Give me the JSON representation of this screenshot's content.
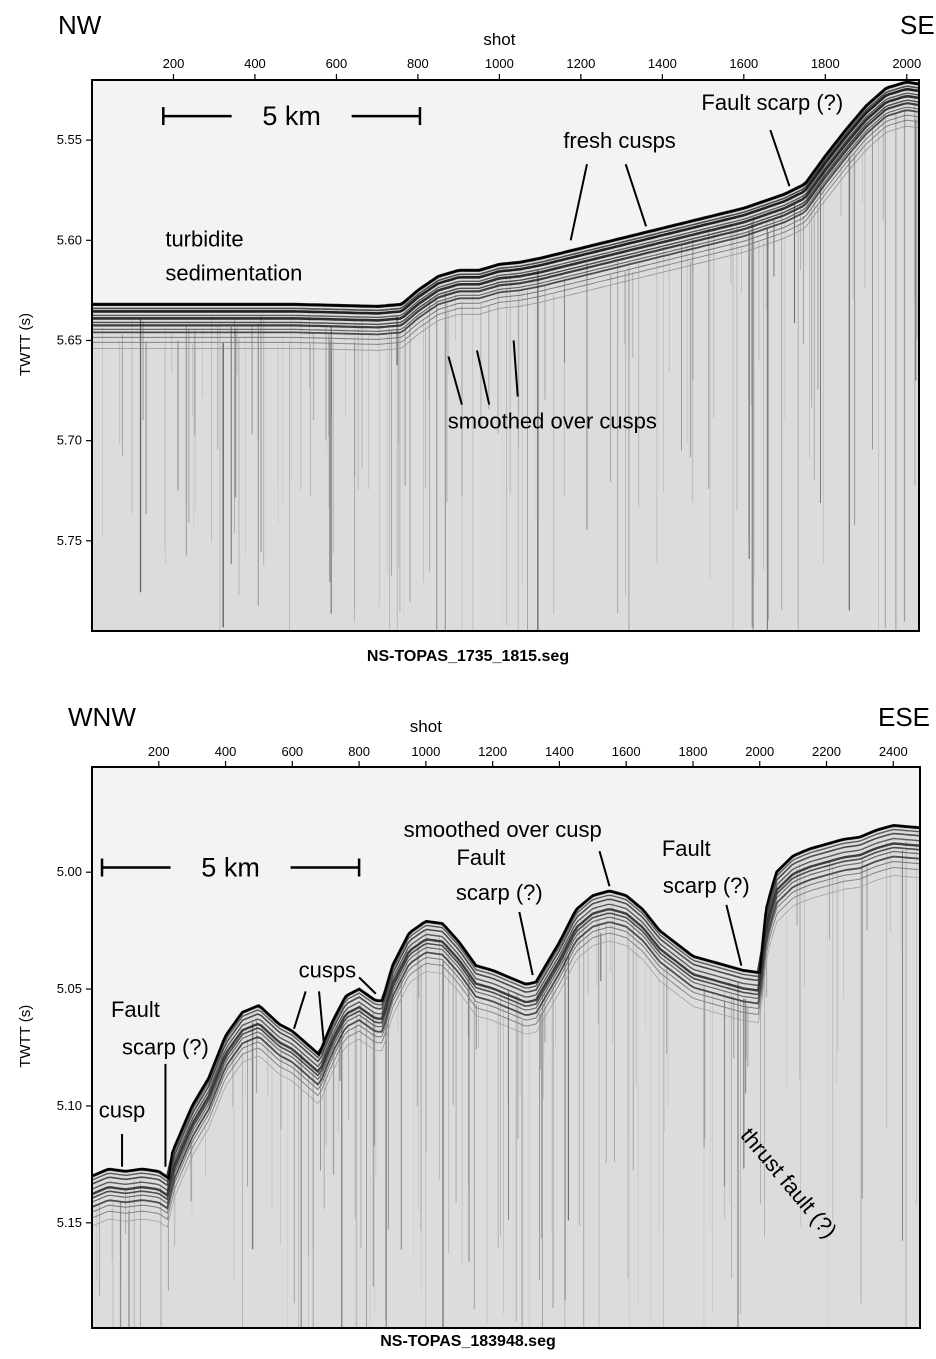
{
  "chart_data": [
    {
      "type": "line",
      "filename": "NS-TOPAS_1735_1815.seg",
      "dir_left": "NW",
      "dir_right": "SE",
      "xlabel": "shot",
      "ylabel": "TWTT (s)",
      "xlim": [
        0,
        2030
      ],
      "ylim": [
        5.52,
        5.795
      ],
      "xticks": [
        200,
        400,
        600,
        800,
        1000,
        1200,
        1400,
        1600,
        1800,
        2000
      ],
      "xtick_labels": [
        "200",
        "400",
        "600",
        "800",
        "1000",
        "1200",
        "1400",
        "1600",
        "1800",
        "2000"
      ],
      "yticks": [
        5.55,
        5.6,
        5.65,
        5.7,
        5.75
      ],
      "ytick_labels": [
        "5.55",
        "5.60",
        "5.65",
        "5.70",
        "5.75"
      ],
      "scale_bar": {
        "label": "5 km",
        "from": 175,
        "to": 805,
        "y": 5.538
      },
      "series": [
        {
          "x": [
            0,
            150,
            300,
            500,
            700,
            760,
            800,
            850,
            900,
            950,
            1000,
            1050,
            1100,
            1200,
            1300,
            1400,
            1500,
            1600,
            1700,
            1750,
            1800,
            1850,
            1900,
            1950,
            2000,
            2030
          ],
          "y": [
            5.632,
            5.632,
            5.632,
            5.632,
            5.633,
            5.632,
            5.625,
            5.618,
            5.615,
            5.615,
            5.612,
            5.611,
            5.609,
            5.604,
            5.599,
            5.594,
            5.589,
            5.584,
            5.577,
            5.572,
            5.558,
            5.545,
            5.533,
            5.524,
            5.521,
            5.522
          ]
        }
      ],
      "annotations": [
        {
          "text": "turbidite",
          "x": 180,
          "y": 5.603,
          "align": "start"
        },
        {
          "text": "sedimentation",
          "x": 180,
          "y": 5.62,
          "align": "start"
        },
        {
          "text": "fresh cusps",
          "x": 1295,
          "y": 5.554,
          "align": "middle"
        },
        {
          "text": "Fault scarp (?)",
          "x": 1670,
          "y": 5.535,
          "align": "middle"
        },
        {
          "text": "smoothed over cusps",
          "x": 1130,
          "y": 5.694,
          "align": "middle"
        }
      ],
      "pointers": [
        {
          "from": [
            1215,
            5.562
          ],
          "to": [
            1175,
            5.6
          ]
        },
        {
          "from": [
            1310,
            5.562
          ],
          "to": [
            1360,
            5.593
          ]
        },
        {
          "from": [
            1665,
            5.545
          ],
          "to": [
            1712,
            5.573
          ]
        },
        {
          "from": [
            908,
            5.682
          ],
          "to": [
            875,
            5.658
          ]
        },
        {
          "from": [
            975,
            5.682
          ],
          "to": [
            945,
            5.655
          ]
        },
        {
          "from": [
            1045,
            5.678
          ],
          "to": [
            1035,
            5.65
          ]
        }
      ]
    },
    {
      "type": "line",
      "filename": "NS-TOPAS_183948.seg",
      "dir_left": "WNW",
      "dir_right": "ESE",
      "xlabel": "shot",
      "ylabel": "TWTT (s)",
      "xlim": [
        0,
        2480
      ],
      "ylim": [
        4.955,
        5.195
      ],
      "xticks": [
        200,
        400,
        600,
        800,
        1000,
        1200,
        1400,
        1600,
        1800,
        2000,
        2200,
        2400
      ],
      "xtick_labels": [
        "200",
        "400",
        "600",
        "800",
        "1000",
        "1200",
        "1400",
        "1600",
        "1800",
        "2000",
        "2200",
        "2400"
      ],
      "yticks": [
        5.0,
        5.05,
        5.1,
        5.15
      ],
      "ytick_labels": [
        "5.00",
        "5.05",
        "5.10",
        "5.15"
      ],
      "scale_bar": {
        "label": "5 km",
        "from": 30,
        "to": 800,
        "y": 4.998
      },
      "series": [
        {
          "x": [
            0,
            50,
            100,
            150,
            200,
            230,
            240,
            300,
            350,
            400,
            450,
            500,
            560,
            600,
            640,
            680,
            720,
            760,
            800,
            850,
            870,
            900,
            950,
            1000,
            1050,
            1100,
            1150,
            1200,
            1250,
            1300,
            1330,
            1400,
            1450,
            1500,
            1550,
            1600,
            1650,
            1700,
            1800,
            1900,
            1950,
            2000,
            2020,
            2050,
            2100,
            2150,
            2200,
            2250,
            2300,
            2350,
            2400,
            2480
          ],
          "y": [
            5.13,
            5.127,
            5.128,
            5.127,
            5.128,
            5.131,
            5.12,
            5.1,
            5.088,
            5.07,
            5.06,
            5.057,
            5.065,
            5.068,
            5.073,
            5.078,
            5.064,
            5.053,
            5.05,
            5.055,
            5.055,
            5.04,
            5.026,
            5.021,
            5.022,
            5.03,
            5.04,
            5.042,
            5.045,
            5.048,
            5.047,
            5.03,
            5.016,
            5.01,
            5.008,
            5.01,
            5.016,
            5.025,
            5.036,
            5.04,
            5.042,
            5.043,
            5.015,
            5.0,
            4.993,
            4.99,
            4.988,
            4.986,
            4.985,
            4.982,
            4.98,
            4.981
          ]
        }
      ],
      "annotations": [
        {
          "text": "cusp",
          "x": 90,
          "y": 5.105,
          "align": "middle"
        },
        {
          "text": "Fault",
          "x": 130,
          "y": 5.062,
          "align": "middle"
        },
        {
          "text": "scarp (?)",
          "x": 220,
          "y": 5.078,
          "align": "middle"
        },
        {
          "text": "cusps",
          "x": 705,
          "y": 5.045,
          "align": "middle"
        },
        {
          "text": "smoothed over cusp",
          "x": 1230,
          "y": 4.985,
          "align": "middle"
        },
        {
          "text": "Fault",
          "x": 1165,
          "y": 4.997,
          "align": "middle"
        },
        {
          "text": "scarp (?)",
          "x": 1220,
          "y": 5.012,
          "align": "middle"
        },
        {
          "text": "Fault",
          "x": 1780,
          "y": 4.993,
          "align": "middle"
        },
        {
          "text": "scarp (?)",
          "x": 1840,
          "y": 5.009,
          "align": "middle"
        },
        {
          "text": "thrust fault (?)",
          "x": 2070,
          "y": 5.135,
          "align": "middle",
          "rotate": 50
        }
      ],
      "pointers": [
        {
          "from": [
            90,
            5.112
          ],
          "to": [
            90,
            5.126
          ]
        },
        {
          "from": [
            220,
            5.082
          ],
          "to": [
            220,
            5.126
          ]
        },
        {
          "from": [
            640,
            5.051
          ],
          "to": [
            605,
            5.067
          ]
        },
        {
          "from": [
            680,
            5.051
          ],
          "to": [
            695,
            5.074
          ]
        },
        {
          "from": [
            800,
            5.045
          ],
          "to": [
            850,
            5.052
          ]
        },
        {
          "from": [
            1520,
            4.991
          ],
          "to": [
            1550,
            5.006
          ]
        },
        {
          "from": [
            1280,
            5.017
          ],
          "to": [
            1320,
            5.044
          ]
        },
        {
          "from": [
            1900,
            5.014
          ],
          "to": [
            1945,
            5.04
          ]
        }
      ]
    }
  ]
}
